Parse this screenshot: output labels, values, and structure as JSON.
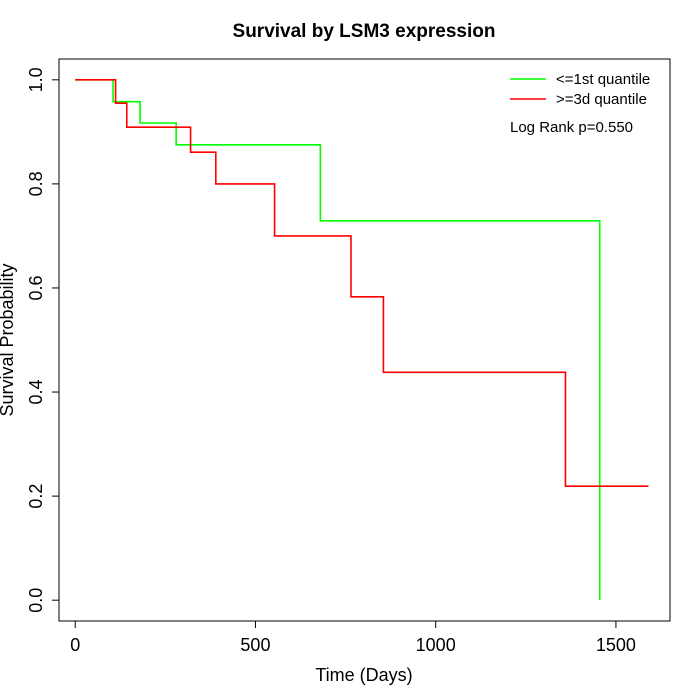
{
  "chart_data": {
    "type": "line",
    "step": true,
    "title": "Survival by LSM3 expression",
    "xlabel": "Time (Days)",
    "ylabel": "Survival Probability",
    "xlim": [
      -45,
      1650
    ],
    "ylim": [
      -0.04,
      1.04
    ],
    "xticks": [
      0,
      500,
      1000,
      1500
    ],
    "yticks": [
      0.0,
      0.2,
      0.4,
      0.6,
      0.8,
      1.0
    ],
    "xtick_labels": [
      "0",
      "500",
      "1000",
      "1500"
    ],
    "ytick_labels": [
      "0.0",
      "0.2",
      "0.4",
      "0.6",
      "0.8",
      "1.0"
    ],
    "grid": false,
    "legend_position": "top-right",
    "annotation": "Log Rank p=0.550",
    "series": [
      {
        "name": "<=1st quantile",
        "color": "#00ff00",
        "x": [
          0,
          105,
          180,
          280,
          680,
          1455
        ],
        "y": [
          1.0,
          0.958,
          0.917,
          0.875,
          0.729,
          0.0
        ]
      },
      {
        "name": ">=3d quantile",
        "color": "#ff0000",
        "x": [
          0,
          112,
          143,
          320,
          390,
          553,
          765,
          855,
          1360,
          1590
        ],
        "y": [
          1.0,
          0.955,
          0.909,
          0.861,
          0.8,
          0.7,
          0.583,
          0.438,
          0.219,
          0.219
        ]
      }
    ]
  }
}
